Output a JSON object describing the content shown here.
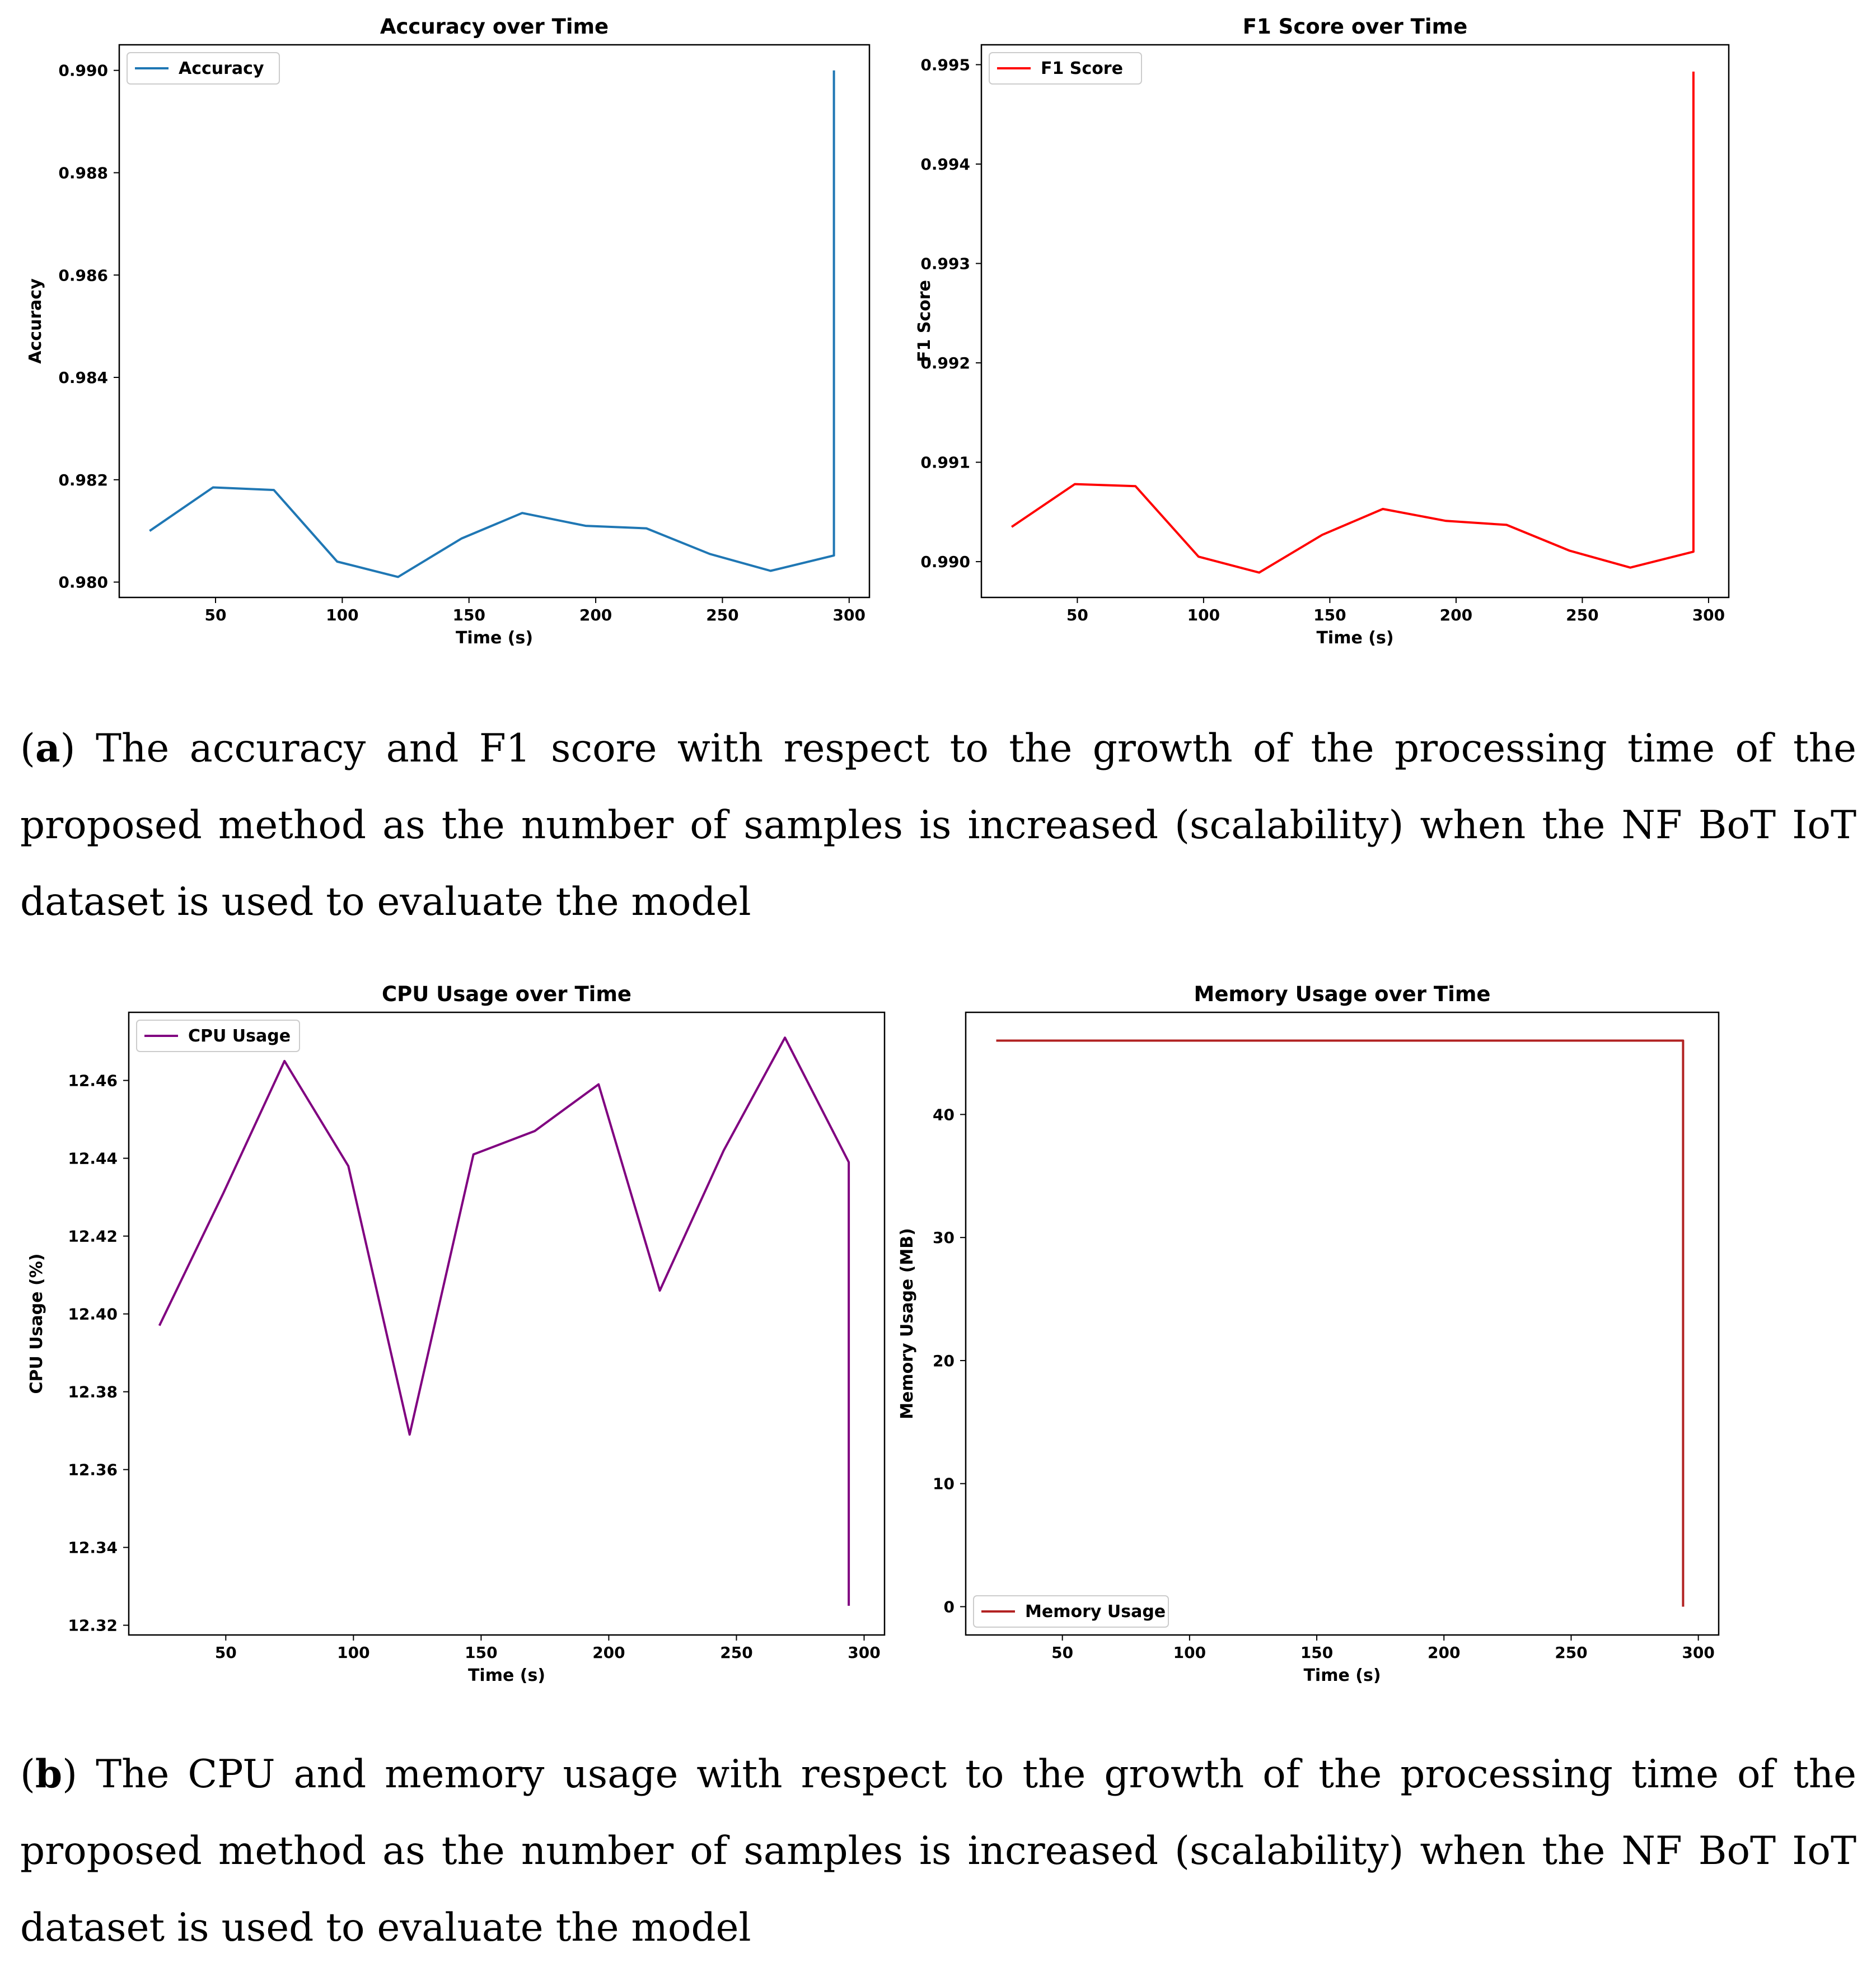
{
  "captions": {
    "a": {
      "letter": "a",
      "text": ") The accuracy and F1 score with respect to the growth of the processing time of the proposed method as the number of samples is increased (scalability) when the NF BoT IoT dataset is used to evaluate the model"
    },
    "b": {
      "letter": "b",
      "text": ") The CPU and memory usage with respect to the growth of the processing time of the proposed method as the number of samples is increased (scalability) when the NF BoT IoT dataset is used to evaluate the model"
    }
  },
  "chart_data": [
    {
      "type": "line",
      "title": "Accuracy over Time",
      "xlabel": "Time (s)",
      "ylabel": "Accuracy",
      "xlim": [
        12,
        308
      ],
      "ylim": [
        0.9797,
        0.9905
      ],
      "xticks": [
        "50",
        "100",
        "150",
        "200",
        "250",
        "300"
      ],
      "yticks": [
        "0.980",
        "0.982",
        "0.984",
        "0.986",
        "0.988",
        "0.990"
      ],
      "legend_position": "upper-left",
      "series": [
        {
          "name": "Accuracy",
          "color": "#1f77b4",
          "x": [
            24,
            49,
            73,
            98,
            122,
            147,
            171,
            196,
            220,
            245,
            269,
            294,
            294
          ],
          "y": [
            0.981,
            0.98185,
            0.9818,
            0.9804,
            0.9801,
            0.98085,
            0.98135,
            0.9811,
            0.98105,
            0.98055,
            0.98022,
            0.98052,
            0.99
          ]
        }
      ]
    },
    {
      "type": "line",
      "title": "F1 Score over Time",
      "xlabel": "Time (s)",
      "ylabel": "F1 Score",
      "xlim": [
        12,
        308
      ],
      "ylim": [
        0.98964,
        0.9952
      ],
      "xticks": [
        "50",
        "100",
        "150",
        "200",
        "250",
        "300"
      ],
      "yticks": [
        "0.990",
        "0.991",
        "0.992",
        "0.993",
        "0.994",
        "0.995"
      ],
      "legend_position": "upper-left",
      "series": [
        {
          "name": "F1 Score",
          "color": "#ff0000",
          "x": [
            24,
            49,
            73,
            98,
            122,
            147,
            171,
            196,
            220,
            245,
            269,
            294,
            294
          ],
          "y": [
            0.99035,
            0.99078,
            0.99076,
            0.99005,
            0.98989,
            0.99027,
            0.99053,
            0.99041,
            0.99037,
            0.99011,
            0.98994,
            0.9901,
            0.99493
          ]
        }
      ]
    },
    {
      "type": "line",
      "title": "CPU Usage over Time",
      "xlabel": "Time (s)",
      "ylabel": "CPU Usage (%)",
      "xlim": [
        12,
        308
      ],
      "ylim": [
        12.3175,
        12.4775
      ],
      "xticks": [
        "50",
        "100",
        "150",
        "200",
        "250",
        "300"
      ],
      "yticks": [
        "12.32",
        "12.34",
        "12.36",
        "12.38",
        "12.40",
        "12.42",
        "12.44",
        "12.46"
      ],
      "legend_position": "upper-left",
      "series": [
        {
          "name": "CPU Usage",
          "color": "#800080",
          "x": [
            24,
            49,
            73,
            98,
            122,
            147,
            171,
            196,
            220,
            245,
            269,
            294,
            294
          ],
          "y": [
            12.397,
            12.431,
            12.465,
            12.438,
            12.369,
            12.441,
            12.447,
            12.459,
            12.406,
            12.442,
            12.471,
            12.439,
            12.325
          ]
        }
      ]
    },
    {
      "type": "line",
      "title": "Memory Usage over Time",
      "xlabel": "Time (s)",
      "ylabel": "Memory Usage (MB)",
      "xlim": [
        12,
        308
      ],
      "ylim": [
        -2.3,
        48.3
      ],
      "xticks": [
        "50",
        "100",
        "150",
        "200",
        "250",
        "300"
      ],
      "yticks": [
        "0",
        "10",
        "20",
        "30",
        "40"
      ],
      "legend_position": "lower-left",
      "series": [
        {
          "name": "Memory Usage",
          "color": "#b22222",
          "x": [
            24,
            294,
            294
          ],
          "y": [
            46,
            46,
            0
          ]
        }
      ]
    }
  ]
}
